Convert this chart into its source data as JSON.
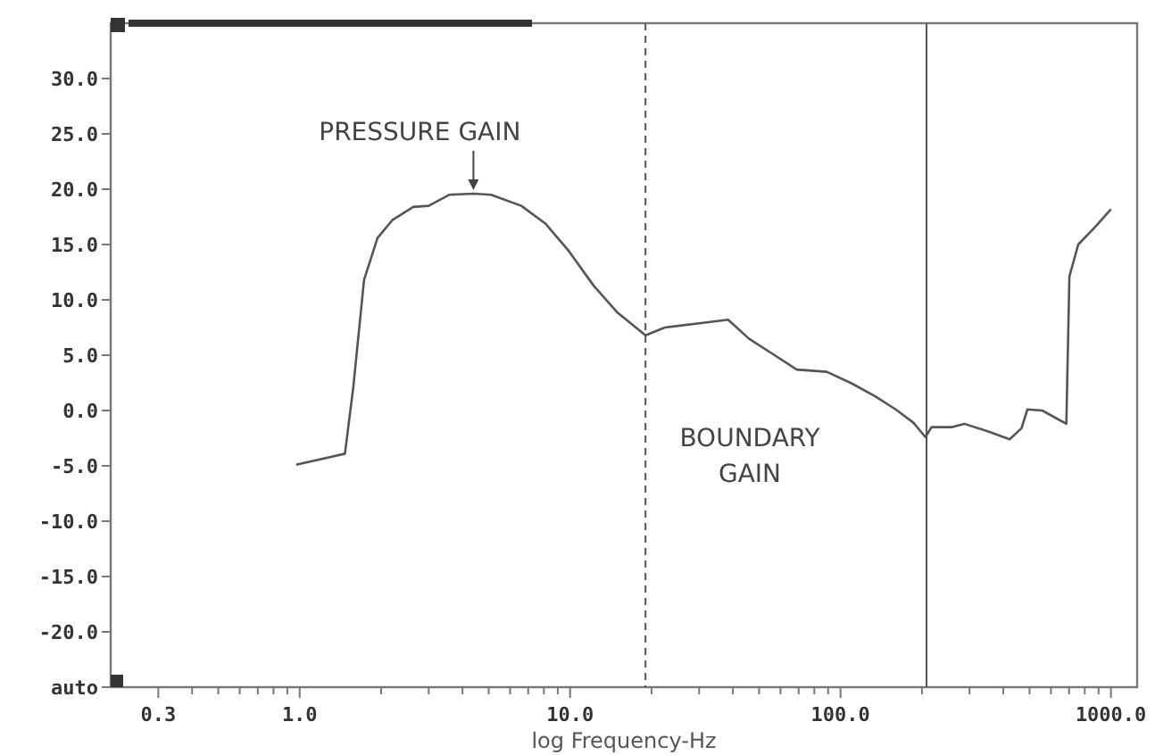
{
  "chart_data": {
    "type": "line",
    "xlabel": "log Frequency-Hz",
    "log": "x",
    "xlim": [
      0.2,
      1250
    ],
    "xticks": [
      {
        "value": 0.3,
        "label": "0.3"
      },
      {
        "value": 0.4,
        "label": null
      },
      {
        "value": 0.5,
        "label": null
      },
      {
        "value": 0.6,
        "label": null
      },
      {
        "value": 0.7,
        "label": null
      },
      {
        "value": 0.8,
        "label": null
      },
      {
        "value": 0.9,
        "label": null
      },
      {
        "value": 1,
        "label": "1.0"
      },
      {
        "value": 2,
        "label": null
      },
      {
        "value": 3,
        "label": null
      },
      {
        "value": 4,
        "label": null
      },
      {
        "value": 5,
        "label": null
      },
      {
        "value": 6,
        "label": null
      },
      {
        "value": 7,
        "label": null
      },
      {
        "value": 8,
        "label": null
      },
      {
        "value": 9,
        "label": null
      },
      {
        "value": 10,
        "label": "10.0"
      },
      {
        "value": 20,
        "label": null
      },
      {
        "value": 30,
        "label": null
      },
      {
        "value": 40,
        "label": null
      },
      {
        "value": 50,
        "label": null
      },
      {
        "value": 60,
        "label": null
      },
      {
        "value": 70,
        "label": null
      },
      {
        "value": 80,
        "label": null
      },
      {
        "value": 90,
        "label": null
      },
      {
        "value": 100,
        "label": "100.0"
      },
      {
        "value": 200,
        "label": null
      },
      {
        "value": 300,
        "label": null
      },
      {
        "value": 400,
        "label": null
      },
      {
        "value": 500,
        "label": null
      },
      {
        "value": 600,
        "label": null
      },
      {
        "value": 700,
        "label": null
      },
      {
        "value": 800,
        "label": null
      },
      {
        "value": 900,
        "label": null
      },
      {
        "value": 1000,
        "label": "1000.0"
      }
    ],
    "ylim": [
      -25,
      35
    ],
    "yticks": [
      {
        "value": -25,
        "label": "auto"
      },
      {
        "value": -20,
        "label": "-20.0"
      },
      {
        "value": -15,
        "label": "-15.0"
      },
      {
        "value": -10,
        "label": "-10.0"
      },
      {
        "value": -5,
        "label": "-5.0"
      },
      {
        "value": 0,
        "label": "0.0"
      },
      {
        "value": 5,
        "label": "5.0"
      },
      {
        "value": 10,
        "label": "10.0"
      },
      {
        "value": 15,
        "label": "15.0"
      },
      {
        "value": 20,
        "label": "20.0"
      },
      {
        "value": 25,
        "label": "25.0"
      },
      {
        "value": 30,
        "label": "30.0"
      }
    ],
    "grid": false,
    "line_style": "solid",
    "series": [
      {
        "color": "#555555",
        "x": [
          0.97,
          1.47,
          1.58,
          1.73,
          1.94,
          2.2,
          2.63,
          3.0,
          3.58,
          4.39,
          5.1,
          6.6,
          8.1,
          9.9,
          12.2,
          14.9,
          19,
          22.4,
          30.5,
          38.4,
          45.8,
          56.2,
          68.9,
          88.9,
          109,
          134,
          160,
          186,
          206,
          217,
          259,
          287,
          352,
          422,
          467,
          491,
          557,
          684,
          702,
          757,
          883,
          1000
        ],
        "values": [
          -4.9,
          -3.9,
          2.2,
          11.8,
          15.6,
          17.2,
          18.4,
          18.5,
          19.5,
          19.6,
          19.5,
          18.5,
          16.9,
          14.4,
          11.3,
          8.9,
          6.8,
          7.5,
          7.9,
          8.2,
          6.5,
          5.1,
          3.7,
          3.5,
          2.5,
          1.3,
          0.1,
          -1.1,
          -2.4,
          -1.5,
          -1.5,
          -1.2,
          -1.9,
          -2.6,
          -1.6,
          0.1,
          0.0,
          -1.2,
          12.1,
          15.0,
          16.7,
          18.2
        ]
      }
    ],
    "ref_lines": [
      {
        "axis": "x",
        "value": 19,
        "line_style": "dashed",
        "color": "#555555"
      },
      {
        "axis": "x",
        "value": 208,
        "line_style": "solid",
        "color": "#555555"
      }
    ],
    "annotations": [
      {
        "text": "PRESSURE GAIN",
        "x": 4.39,
        "y": 19.6
      },
      "BOUNDARY GAIN"
    ]
  }
}
